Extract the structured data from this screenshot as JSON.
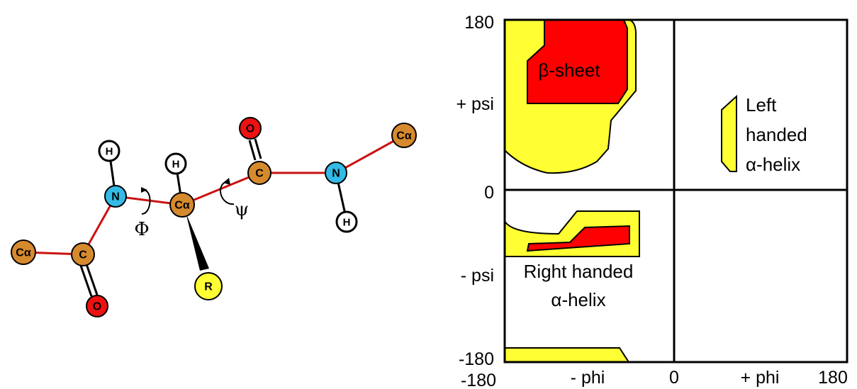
{
  "molecule": {
    "atoms": {
      "ca_left": "Cα",
      "c_left": "C",
      "o_left": "O",
      "n_left": "N",
      "h_left": "H",
      "ca_center": "Cα",
      "h_center": "H",
      "r_group": "R",
      "c_right": "C",
      "o_right": "O",
      "n_right": "N",
      "h_right": "H",
      "ca_right": "Cα"
    },
    "angles": {
      "phi": "Φ",
      "psi": "ψ"
    }
  },
  "plot": {
    "y_ticks": {
      "top": "180",
      "zero": "0",
      "bottom": "-180"
    },
    "y_side_labels": {
      "plus": "+ psi",
      "minus": "- psi"
    },
    "x_ticks": {
      "left": "-180",
      "zero": "0",
      "right": "180"
    },
    "x_side_labels": {
      "minus": "- phi",
      "plus": "+ phi"
    },
    "regions": {
      "beta_sheet": "β-sheet",
      "left_helix": [
        "Left",
        "handed",
        "α-helix"
      ],
      "right_helix": [
        "Right handed",
        "α-helix"
      ]
    },
    "colors": {
      "allowed": "#ffff33",
      "favored": "#ff0000",
      "outline": "#000000"
    }
  },
  "colors": {
    "carbon": "#d68a2e",
    "nitrogen": "#33bbe6",
    "oxygen": "#ee1111",
    "hydrogen": "#ffffff",
    "r_group": "#ffff33",
    "bond": "#cc1111"
  }
}
